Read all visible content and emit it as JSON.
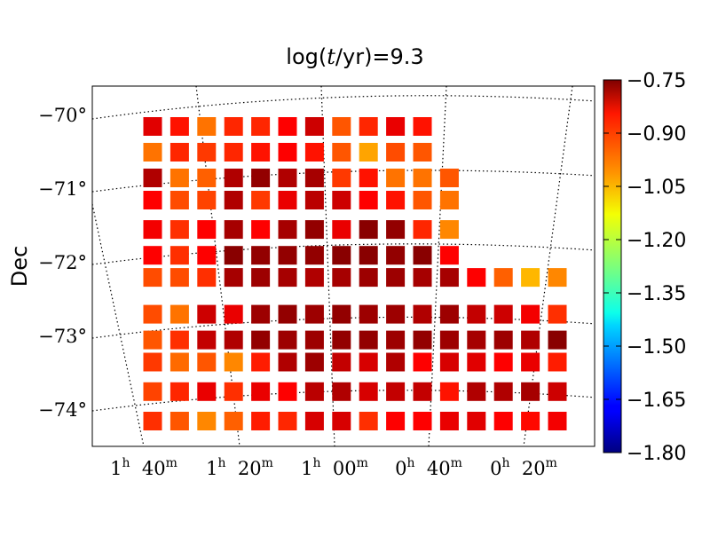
{
  "chart_data": {
    "type": "heatmap",
    "title": "log(t/yr)=9.3",
    "ylabel": "Dec",
    "xlabel": "",
    "y_ticks": [
      {
        "label": "−70°",
        "value": -70
      },
      {
        "label": "−71°",
        "value": -71
      },
      {
        "label": "−72°",
        "value": -72
      },
      {
        "label": "−73°",
        "value": -73
      },
      {
        "label": "−74°",
        "value": -74
      }
    ],
    "x_ticks": [
      {
        "h": "1",
        "m": "40",
        "label": "1h 40m"
      },
      {
        "h": "1",
        "m": "20",
        "label": "1h 20m"
      },
      {
        "h": "1",
        "m": "00",
        "label": "1h 00m"
      },
      {
        "h": "0",
        "m": "40",
        "label": "0h 40m"
      },
      {
        "h": "0",
        "m": "20",
        "label": "0h 20m"
      }
    ],
    "colorbar": {
      "colormap": "jet",
      "range": [
        -1.8,
        -0.75
      ],
      "ticks": [
        "−0.75",
        "−0.90",
        "−1.05",
        "−1.20",
        "−1.35",
        "−1.50",
        "−1.65",
        "−1.80"
      ],
      "tick_values": [
        -0.75,
        -0.9,
        -1.05,
        -1.2,
        -1.35,
        -1.5,
        -1.65,
        -1.8
      ]
    },
    "grid": "dotted",
    "rows": [
      {
        "dec": -70.15,
        "values": [
          -0.85,
          -0.9,
          -1.0,
          -0.92,
          -0.92,
          -0.88,
          -0.83,
          -0.97,
          -0.92,
          -0.86,
          -0.9
        ]
      },
      {
        "dec": -70.5,
        "values": [
          -1.0,
          -0.92,
          -0.94,
          -0.92,
          -0.9,
          -0.88,
          -0.9,
          -0.97,
          -1.05,
          -0.96,
          -0.97
        ]
      },
      {
        "dec": -70.85,
        "values": [
          -0.8,
          -1.0,
          -0.98,
          -0.8,
          -0.77,
          -0.8,
          -0.79,
          -0.94,
          -0.9,
          -1.0,
          -1.0,
          -0.97
        ]
      },
      {
        "dec": -71.15,
        "values": [
          -0.88,
          -0.96,
          -0.95,
          -0.8,
          -0.94,
          -0.86,
          -0.81,
          -0.83,
          -0.88,
          -0.9,
          -0.97,
          -1.0
        ]
      },
      {
        "dec": -71.55,
        "values": [
          -0.87,
          -0.93,
          -0.88,
          -0.79,
          -0.88,
          -0.79,
          -0.77,
          -0.86,
          -0.76,
          -0.77,
          -0.92,
          -1.02
        ]
      },
      {
        "dec": -71.9,
        "values": [
          -0.88,
          -0.93,
          -0.88,
          -0.76,
          -0.77,
          -0.77,
          -0.77,
          -0.76,
          -0.76,
          -0.77,
          -0.76,
          -0.88
        ]
      },
      {
        "dec": -72.2,
        "values": [
          -0.96,
          -0.96,
          -0.93,
          -0.79,
          -0.78,
          -0.79,
          -0.8,
          -0.79,
          -0.78,
          -0.78,
          -0.79,
          -0.79,
          -0.88,
          -0.98,
          -1.07,
          -1.02
        ]
      },
      {
        "dec": -72.7,
        "values": [
          -0.96,
          -1.0,
          -0.83,
          -0.86,
          -0.78,
          -0.77,
          -0.78,
          -0.77,
          -0.78,
          -0.78,
          -0.8,
          -0.78,
          -0.82,
          -0.83,
          -0.87,
          -0.93
        ]
      },
      {
        "dec": -73.05,
        "values": [
          -0.97,
          -0.93,
          -0.82,
          -0.8,
          -0.77,
          -0.78,
          -0.78,
          -0.77,
          -0.77,
          -0.78,
          -0.77,
          -0.78,
          -0.79,
          -0.78,
          -0.8,
          -0.76
        ]
      },
      {
        "dec": -73.35,
        "values": [
          -0.94,
          -0.99,
          -0.97,
          -1.02,
          -0.91,
          -0.8,
          -0.78,
          -0.82,
          -0.84,
          -0.8,
          -0.88,
          -0.84,
          -0.85,
          -0.88,
          -0.86,
          -0.91
        ]
      },
      {
        "dec": -73.75,
        "values": [
          -0.95,
          -0.92,
          -0.86,
          -0.93,
          -0.86,
          -0.88,
          -0.81,
          -0.8,
          -0.84,
          -0.82,
          -0.82,
          -0.9,
          -0.8,
          -0.8,
          -0.79,
          -0.83
        ]
      },
      {
        "dec": -74.15,
        "values": [
          -0.93,
          -0.97,
          -1.02,
          -0.98,
          -0.91,
          -0.92,
          -0.84,
          -0.84,
          -0.93,
          -0.88,
          -0.88,
          -0.86,
          -0.85,
          -0.88,
          -0.89,
          -0.87
        ]
      }
    ]
  }
}
